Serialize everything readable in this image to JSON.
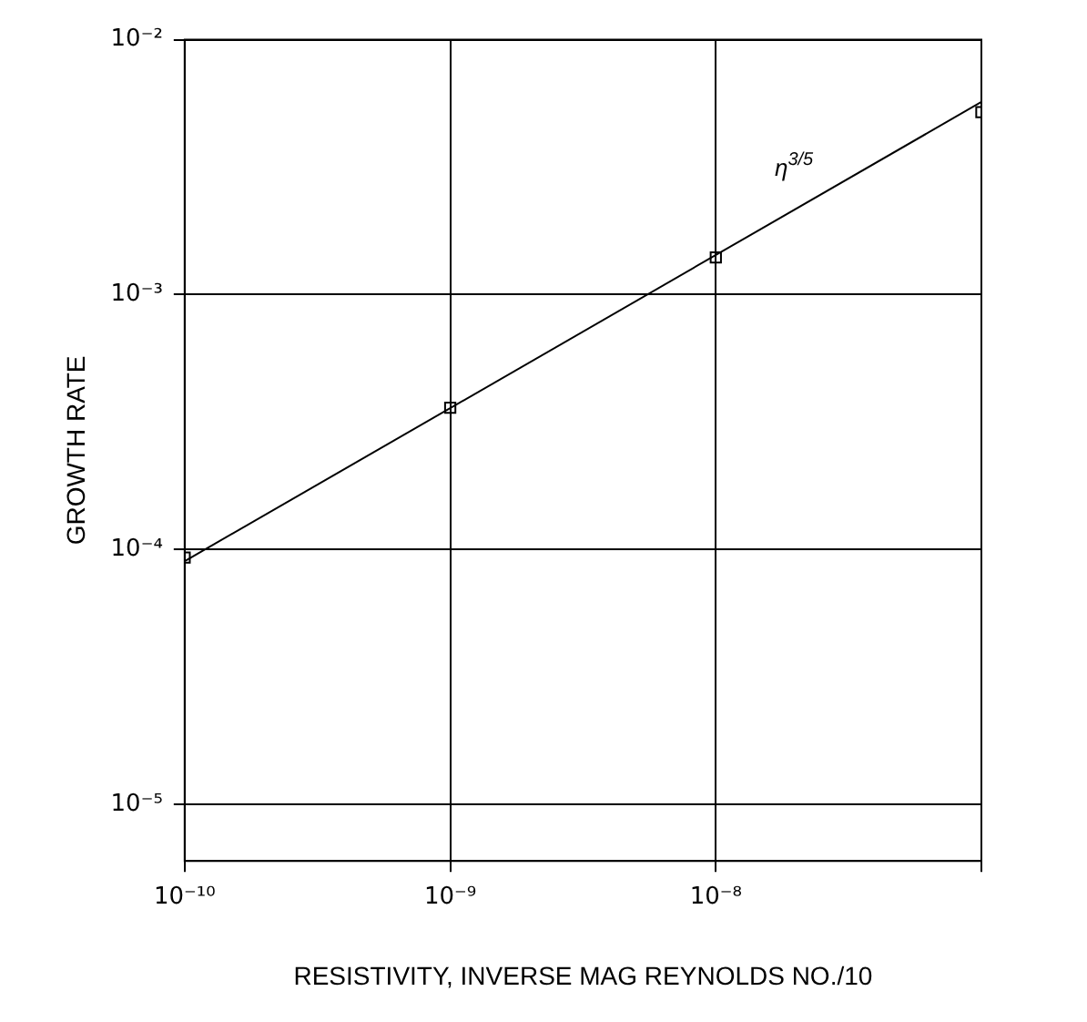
{
  "chart_data": {
    "type": "scatter",
    "xlabel": "RESISTIVITY, INVERSE MAG REYNOLDS NO./10",
    "ylabel": "GROWTH RATE",
    "log": "xy",
    "grid": true,
    "marker": "square",
    "x": [
      1e-10,
      1e-09,
      1e-08,
      1e-07
    ],
    "series": [
      {
        "type": "scatter",
        "color": "#000000",
        "values": [
          9.3e-05,
          0.00036,
          0.0014,
          0.0052
        ]
      },
      {
        "type": "line",
        "name": "η$^{3/5}$",
        "marker": "none",
        "line_style": "solid",
        "color": "#000000",
        "x": [
          1e-10,
          1e-07
        ],
        "values": [
          9e-05,
          0.0057
        ]
      }
    ],
    "xlim": [
      1e-10,
      1e-07
    ],
    "xticks": [
      {
        "value": 1e-10,
        "label": "10⁻¹⁰"
      },
      {
        "value": 1e-09,
        "label": "10⁻⁹"
      },
      {
        "value": 1e-08,
        "label": "10⁻⁸"
      },
      {
        "value": 1e-07,
        "label": null
      }
    ],
    "ylim": [
      6e-06,
      0.01
    ],
    "yticks": [
      {
        "value": 1e-05,
        "label": "10⁻⁵"
      },
      {
        "value": 0.0001,
        "label": "10⁻⁴"
      },
      {
        "value": 0.001,
        "label": "10⁻³"
      },
      {
        "value": 0.01,
        "label": "10⁻²"
      }
    ]
  }
}
